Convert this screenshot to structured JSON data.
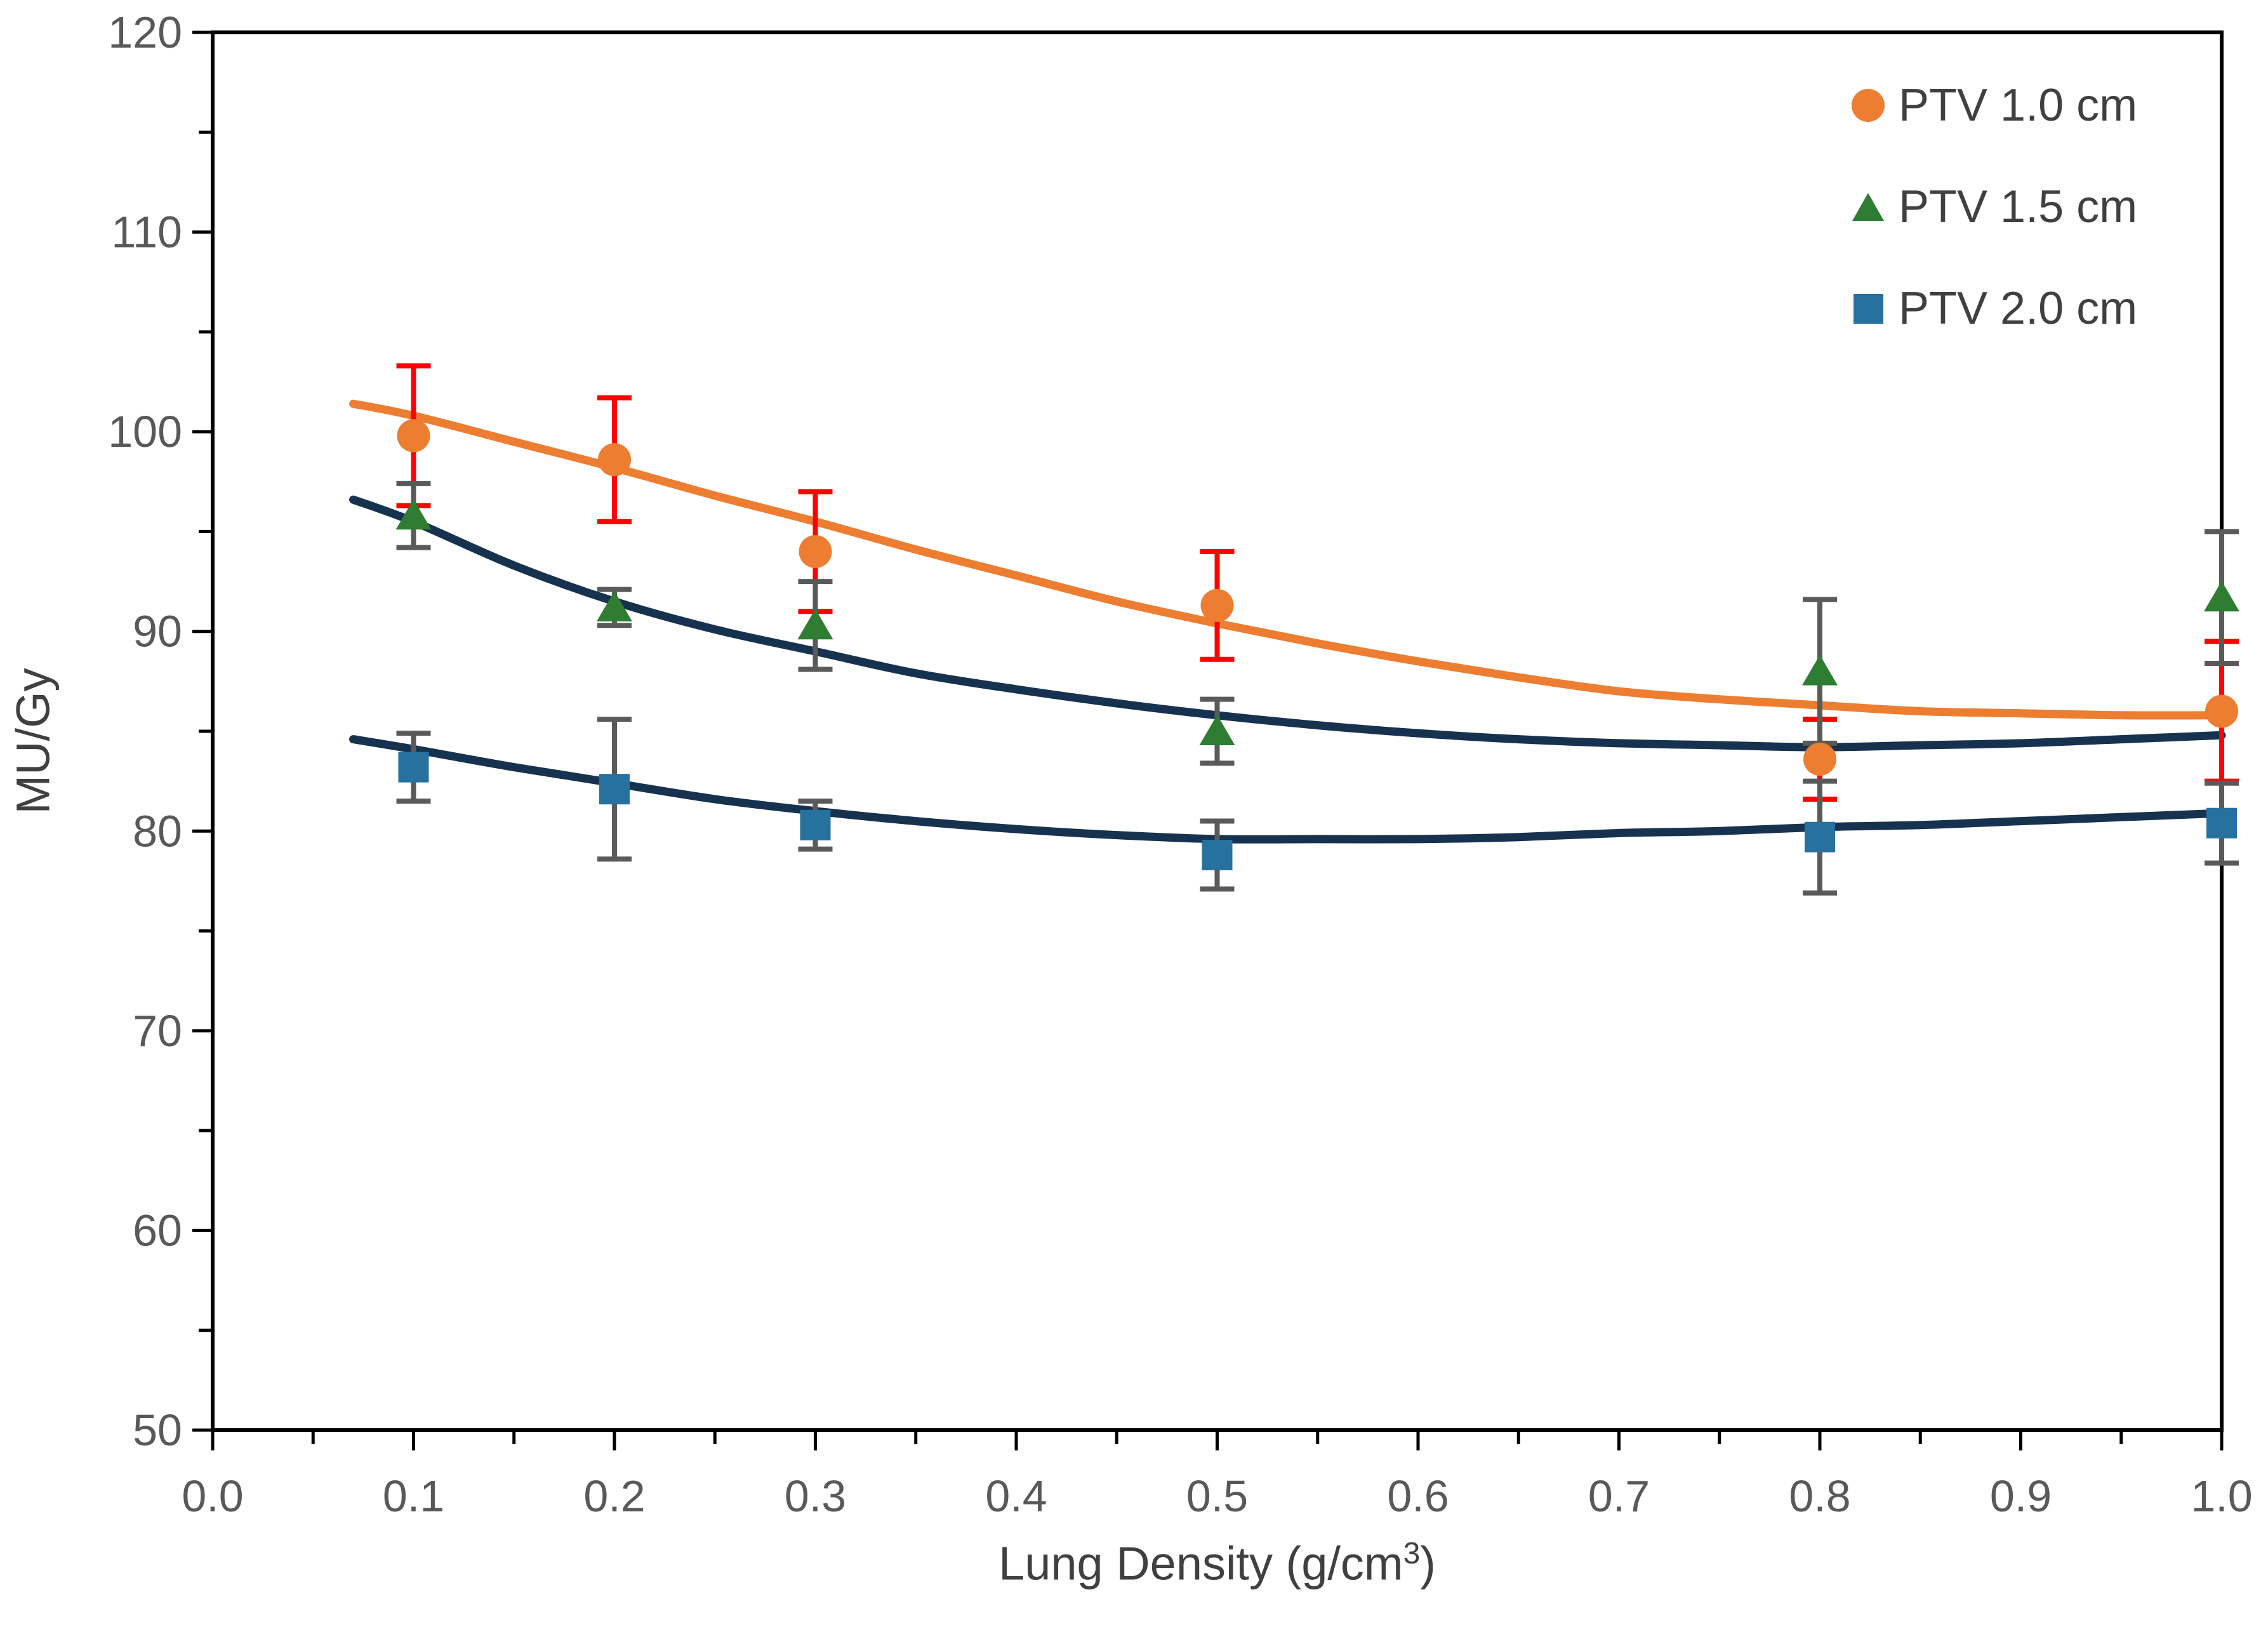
{
  "chart_data": {
    "type": "scatter",
    "title": "",
    "xlabel": {
      "pre": "Lung Density (g/cm",
      "sup": "3",
      "post": ")"
    },
    "ylabel": "MU/Gy",
    "xlim": [
      0.0,
      1.0
    ],
    "ylim": [
      50,
      120
    ],
    "x_tick_labels": [
      "0.0",
      "0.1",
      "0.2",
      "0.3",
      "0.4",
      "0.5",
      "0.6",
      "0.7",
      "0.8",
      "0.9",
      "1.0"
    ],
    "x_tick_values": [
      0.0,
      0.1,
      0.2,
      0.3,
      0.4,
      0.5,
      0.6,
      0.7,
      0.8,
      0.9,
      1.0
    ],
    "x_minor_step": 0.05,
    "y_tick_labels": [
      "50",
      "60",
      "70",
      "80",
      "90",
      "100",
      "110",
      "120"
    ],
    "y_tick_values": [
      50,
      60,
      70,
      80,
      90,
      100,
      110,
      120
    ],
    "y_minor_step": 5,
    "grid": false,
    "legend_position": "top-right",
    "axis_color": "#000000",
    "tick_label_color": "#595959",
    "series": [
      {
        "name": "PTV 1.0 cm",
        "marker": "circle",
        "color": "#ED7D31",
        "trend_color": "#ED7D31",
        "error_color": "#FF0000",
        "points": [
          {
            "x": 0.1,
            "y": 99.8,
            "err": 3.5
          },
          {
            "x": 0.2,
            "y": 98.6,
            "err": 3.1
          },
          {
            "x": 0.3,
            "y": 94.0,
            "err": 3.0
          },
          {
            "x": 0.5,
            "y": 91.3,
            "err": 2.7
          },
          {
            "x": 0.8,
            "y": 83.6,
            "err": 2.0
          },
          {
            "x": 1.0,
            "y": 86.0,
            "err": 3.5
          }
        ],
        "trend": [
          [
            0.07,
            101.4
          ],
          [
            0.1,
            100.8
          ],
          [
            0.15,
            99.5
          ],
          [
            0.2,
            98.2
          ],
          [
            0.25,
            96.8
          ],
          [
            0.3,
            95.5
          ],
          [
            0.35,
            94.1
          ],
          [
            0.4,
            92.8
          ],
          [
            0.45,
            91.5
          ],
          [
            0.5,
            90.4
          ],
          [
            0.55,
            89.4
          ],
          [
            0.6,
            88.5
          ],
          [
            0.65,
            87.7
          ],
          [
            0.7,
            87.0
          ],
          [
            0.75,
            86.6
          ],
          [
            0.8,
            86.3
          ],
          [
            0.85,
            86.0
          ],
          [
            0.9,
            85.9
          ],
          [
            0.95,
            85.8
          ],
          [
            1.0,
            85.8
          ]
        ]
      },
      {
        "name": "PTV 1.5 cm",
        "marker": "triangle",
        "color": "#2E7D32",
        "trend_color": "#16324F",
        "error_color": "#5A5A5A",
        "points": [
          {
            "x": 0.1,
            "y": 95.8,
            "err": 1.6
          },
          {
            "x": 0.2,
            "y": 91.2,
            "err": 0.9
          },
          {
            "x": 0.3,
            "y": 90.3,
            "err": 2.2
          },
          {
            "x": 0.5,
            "y": 85.0,
            "err": 1.6
          },
          {
            "x": 0.8,
            "y": 88.0,
            "err": 3.6
          },
          {
            "x": 1.0,
            "y": 91.7,
            "err": 3.3
          }
        ],
        "trend": [
          [
            0.07,
            96.6
          ],
          [
            0.1,
            95.5
          ],
          [
            0.15,
            93.3
          ],
          [
            0.2,
            91.5
          ],
          [
            0.25,
            90.1
          ],
          [
            0.3,
            89.0
          ],
          [
            0.35,
            87.9
          ],
          [
            0.4,
            87.1
          ],
          [
            0.45,
            86.4
          ],
          [
            0.5,
            85.8
          ],
          [
            0.55,
            85.3
          ],
          [
            0.6,
            84.9
          ],
          [
            0.65,
            84.6
          ],
          [
            0.7,
            84.4
          ],
          [
            0.75,
            84.3
          ],
          [
            0.8,
            84.2
          ],
          [
            0.85,
            84.3
          ],
          [
            0.9,
            84.4
          ],
          [
            0.95,
            84.6
          ],
          [
            1.0,
            84.8
          ]
        ]
      },
      {
        "name": "PTV 2.0 cm",
        "marker": "square",
        "color": "#26719E",
        "trend_color": "#16324F",
        "error_color": "#5A5A5A",
        "points": [
          {
            "x": 0.1,
            "y": 83.2,
            "err": 1.7
          },
          {
            "x": 0.2,
            "y": 82.1,
            "err": 3.5
          },
          {
            "x": 0.3,
            "y": 80.3,
            "err": 1.2
          },
          {
            "x": 0.5,
            "y": 78.8,
            "err": 1.7
          },
          {
            "x": 0.8,
            "y": 79.7,
            "err": 2.8
          },
          {
            "x": 1.0,
            "y": 80.4,
            "err": 2.0
          }
        ],
        "trend": [
          [
            0.07,
            84.6
          ],
          [
            0.1,
            84.1
          ],
          [
            0.15,
            83.2
          ],
          [
            0.2,
            82.4
          ],
          [
            0.25,
            81.6
          ],
          [
            0.3,
            81.0
          ],
          [
            0.35,
            80.5
          ],
          [
            0.4,
            80.1
          ],
          [
            0.45,
            79.8
          ],
          [
            0.5,
            79.6
          ],
          [
            0.55,
            79.6
          ],
          [
            0.6,
            79.6
          ],
          [
            0.65,
            79.7
          ],
          [
            0.7,
            79.9
          ],
          [
            0.75,
            80.0
          ],
          [
            0.8,
            80.2
          ],
          [
            0.85,
            80.3
          ],
          [
            0.9,
            80.5
          ],
          [
            0.95,
            80.7
          ],
          [
            1.0,
            80.9
          ]
        ]
      }
    ]
  }
}
